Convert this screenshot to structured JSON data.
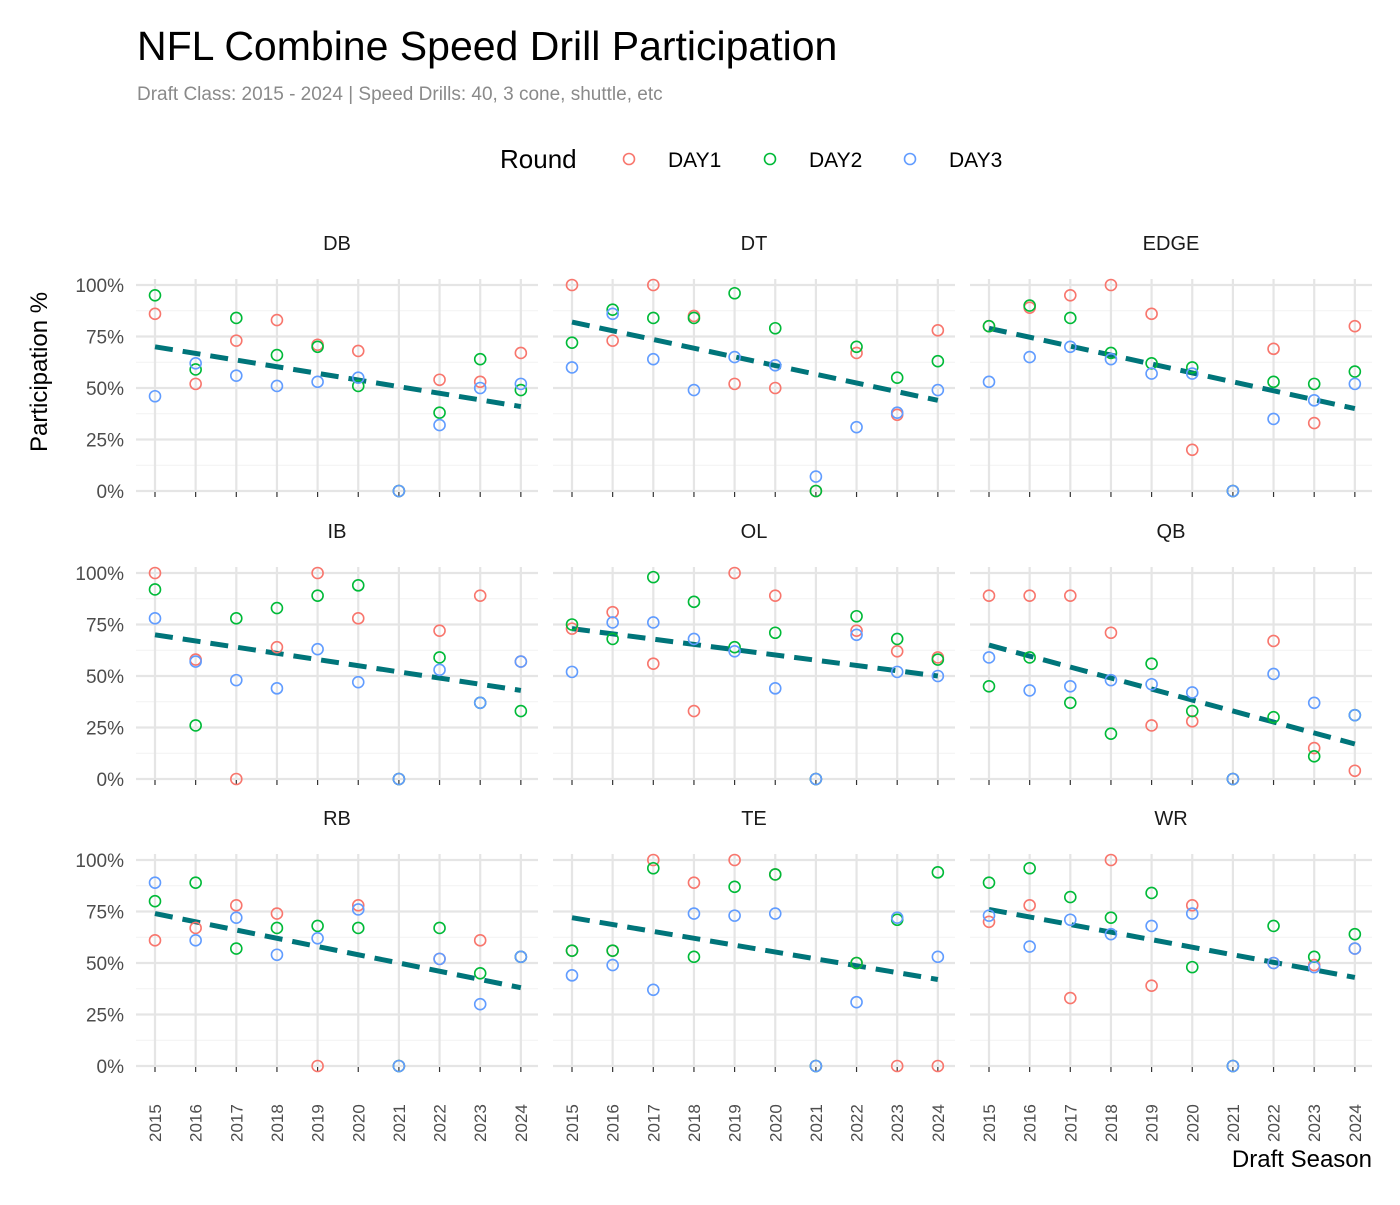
{
  "chart_data": {
    "type": "scatter",
    "title": "NFL Combine Speed Drill Participation",
    "subtitle": "Draft Class: 2015 - 2024 | Speed Drills: 40, 3 cone, shuttle, etc",
    "xlabel": "Draft Season",
    "ylabel": "Participation %",
    "x": [
      2015,
      2016,
      2017,
      2018,
      2019,
      2020,
      2021,
      2022,
      2023,
      2024
    ],
    "ylim": [
      0,
      100
    ],
    "yticks": [
      0,
      25,
      50,
      75,
      100
    ],
    "ytick_labels": [
      "0%",
      "25%",
      "50%",
      "75%",
      "100%"
    ],
    "legend": {
      "title": "Round",
      "position": "top",
      "entries": [
        "DAY1",
        "DAY2",
        "DAY3"
      ]
    },
    "colors": {
      "DAY1": "#F8766D",
      "DAY2": "#00BA38",
      "DAY3": "#619CFF",
      "trend": "#00757A"
    },
    "panels": [
      {
        "name": "DB",
        "series": {
          "DAY1": [
            86,
            52,
            73,
            83,
            71,
            68,
            0,
            54,
            53,
            67
          ],
          "DAY2": [
            95,
            59,
            84,
            66,
            70,
            51,
            0,
            38,
            64,
            49
          ],
          "DAY3": [
            46,
            62,
            56,
            51,
            53,
            55,
            0,
            32,
            50,
            52
          ]
        },
        "trend": [
          70,
          41
        ]
      },
      {
        "name": "DT",
        "series": {
          "DAY1": [
            100,
            73,
            100,
            85,
            52,
            50,
            0,
            67,
            37,
            78
          ],
          "DAY2": [
            72,
            88,
            84,
            84,
            96,
            79,
            0,
            70,
            55,
            63
          ],
          "DAY3": [
            60,
            86,
            64,
            49,
            65,
            61,
            7,
            31,
            38,
            49
          ]
        },
        "trend": [
          82,
          44
        ]
      },
      {
        "name": "EDGE",
        "series": {
          "DAY1": [
            80,
            89,
            95,
            100,
            86,
            20,
            0,
            69,
            33,
            80
          ],
          "DAY2": [
            80,
            90,
            84,
            67,
            62,
            60,
            0,
            53,
            52,
            58
          ],
          "DAY3": [
            53,
            65,
            70,
            64,
            57,
            57,
            0,
            35,
            44,
            52
          ]
        },
        "trend": [
          79,
          40
        ]
      },
      {
        "name": "IB",
        "series": {
          "DAY1": [
            100,
            58,
            0,
            64,
            100,
            78,
            0,
            72,
            89,
            57
          ],
          "DAY2": [
            92,
            26,
            78,
            83,
            89,
            94,
            0,
            59,
            37,
            33
          ],
          "DAY3": [
            78,
            57,
            48,
            44,
            63,
            47,
            0,
            53,
            37,
            57
          ]
        },
        "trend": [
          70,
          43
        ]
      },
      {
        "name": "OL",
        "series": {
          "DAY1": [
            73,
            81,
            56,
            33,
            100,
            89,
            0,
            72,
            62,
            59
          ],
          "DAY2": [
            75,
            68,
            98,
            86,
            64,
            71,
            0,
            79,
            68,
            58
          ],
          "DAY3": [
            52,
            76,
            76,
            68,
            62,
            44,
            0,
            70,
            52,
            50
          ]
        },
        "trend": [
          73,
          50
        ]
      },
      {
        "name": "QB",
        "series": {
          "DAY1": [
            89,
            89,
            89,
            71,
            26,
            28,
            0,
            67,
            15,
            4
          ],
          "DAY2": [
            45,
            59,
            37,
            22,
            56,
            33,
            0,
            30,
            11,
            31
          ],
          "DAY3": [
            59,
            43,
            45,
            48,
            46,
            42,
            0,
            51,
            37,
            31
          ]
        },
        "trend": [
          65,
          17
        ]
      },
      {
        "name": "RB",
        "series": {
          "DAY1": [
            61,
            67,
            78,
            74,
            0,
            78,
            0,
            52,
            61,
            53
          ],
          "DAY2": [
            80,
            89,
            57,
            67,
            68,
            67,
            0,
            67,
            45,
            53
          ],
          "DAY3": [
            89,
            61,
            72,
            54,
            62,
            76,
            0,
            52,
            30,
            53
          ]
        },
        "trend": [
          74,
          38
        ]
      },
      {
        "name": "TE",
        "series": {
          "DAY1": [
            56,
            56,
            100,
            89,
            100,
            93,
            0,
            50,
            0,
            0
          ],
          "DAY2": [
            56,
            56,
            96,
            53,
            87,
            93,
            0,
            50,
            71,
            94
          ],
          "DAY3": [
            44,
            49,
            37,
            74,
            73,
            74,
            0,
            31,
            72,
            53
          ]
        },
        "trend": [
          72,
          42
        ]
      },
      {
        "name": "WR",
        "series": {
          "DAY1": [
            70,
            78,
            33,
            100,
            39,
            78,
            0,
            50,
            49,
            57
          ],
          "DAY2": [
            89,
            96,
            82,
            72,
            84,
            48,
            0,
            68,
            53,
            64
          ],
          "DAY3": [
            73,
            58,
            71,
            64,
            68,
            74,
            0,
            50,
            48,
            57
          ]
        },
        "trend": [
          76,
          43
        ]
      }
    ]
  }
}
